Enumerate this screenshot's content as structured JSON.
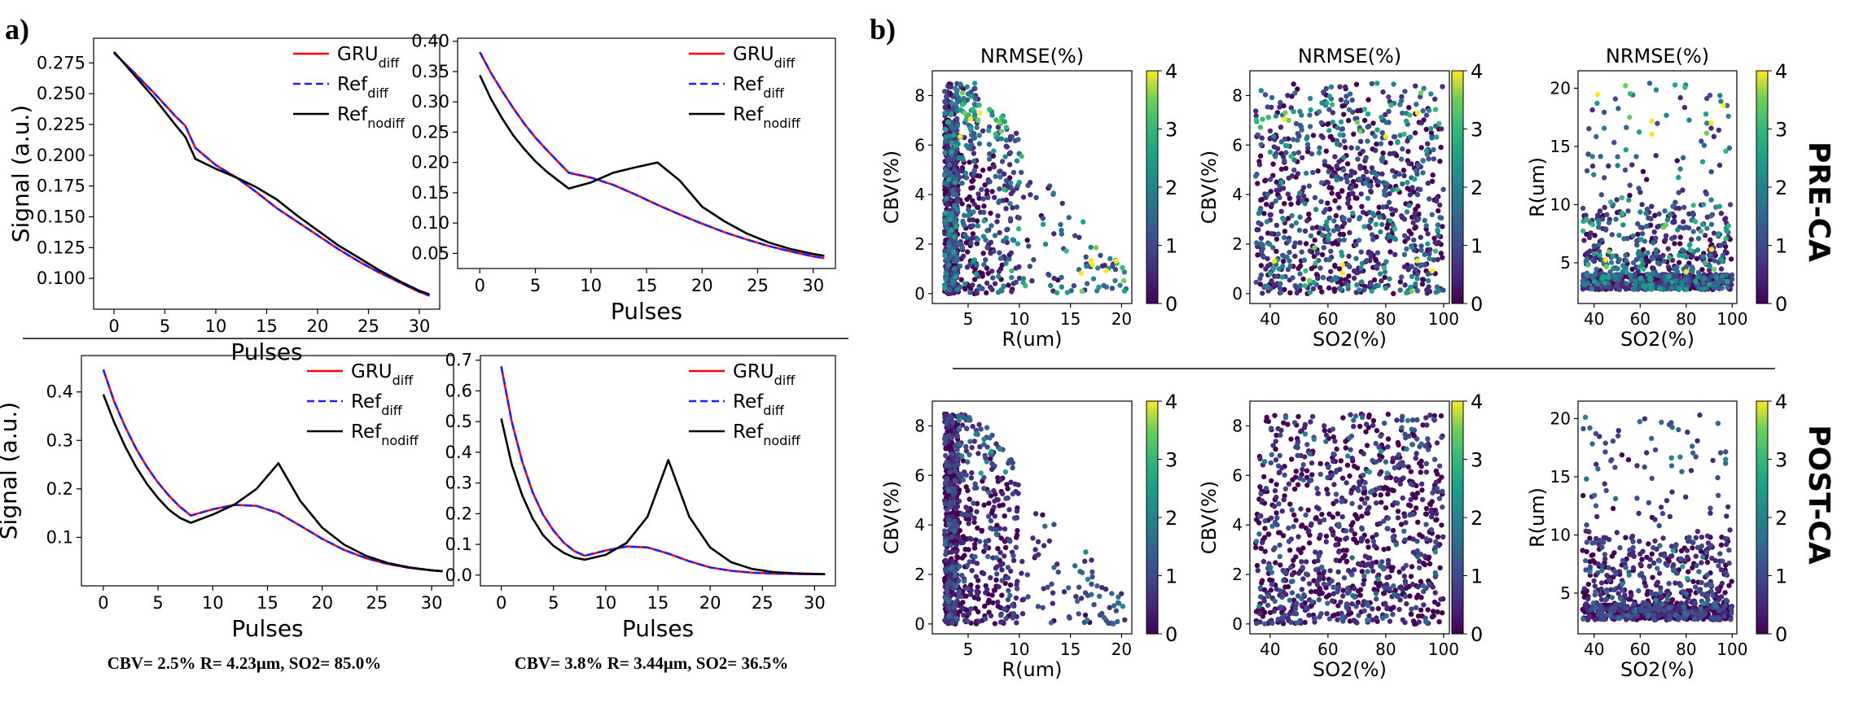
{
  "panel_labels": {
    "a": "a)",
    "b": "b)"
  },
  "row_labels": {
    "pre": "PRE-CA",
    "post": "POST-CA"
  },
  "captions": [
    "CBV= 2.5% R= 4.23μm, SO2= 85.0%",
    "CBV= 3.8% R= 3.44μm, SO2= 36.5%"
  ],
  "legend": {
    "gru": {
      "base": "GRU",
      "sub": "diff",
      "color": "#ff0000"
    },
    "ref": {
      "base": "Ref",
      "sub": "diff",
      "color": "#1f1fff"
    },
    "refnod": {
      "base": "Ref",
      "sub": "nodiff",
      "color": "#000000"
    }
  },
  "colorbar": {
    "ticks": [
      "0",
      "1",
      "2",
      "3",
      "4"
    ],
    "min": 0,
    "max": 4
  },
  "chart_data": [
    {
      "type": "line",
      "title": "",
      "xlabel": "Pulses",
      "ylabel": "Signal (a.u.)",
      "xlim": [
        -2,
        32
      ],
      "ylim": [
        0.075,
        0.295
      ],
      "xticks": [
        0,
        5,
        10,
        15,
        20,
        25,
        30
      ],
      "yticks": [
        0.1,
        0.125,
        0.15,
        0.175,
        0.2,
        0.225,
        0.25,
        0.275
      ],
      "ytick_labels": [
        "0.100",
        "0.125",
        "0.150",
        "0.175",
        "0.200",
        "0.225",
        "0.250",
        "0.275"
      ],
      "x": [
        0,
        2,
        4,
        6,
        7,
        8,
        10,
        12,
        14,
        16,
        18,
        20,
        22,
        24,
        26,
        28,
        30,
        31
      ],
      "series": [
        {
          "name": "GRU_diff",
          "values": [
            0.283,
            0.267,
            0.25,
            0.232,
            0.224,
            0.206,
            0.192,
            0.182,
            0.17,
            0.157,
            0.146,
            0.135,
            0.124,
            0.114,
            0.105,
            0.097,
            0.089,
            0.086
          ]
        },
        {
          "name": "Ref_diff",
          "values": [
            0.283,
            0.267,
            0.25,
            0.232,
            0.224,
            0.206,
            0.192,
            0.182,
            0.17,
            0.157,
            0.146,
            0.135,
            0.124,
            0.114,
            0.105,
            0.097,
            0.089,
            0.086
          ]
        },
        {
          "name": "Ref_nodiff",
          "values": [
            0.284,
            0.265,
            0.246,
            0.225,
            0.215,
            0.197,
            0.189,
            0.182,
            0.174,
            0.164,
            0.151,
            0.139,
            0.127,
            0.117,
            0.107,
            0.098,
            0.09,
            0.087
          ]
        }
      ]
    },
    {
      "type": "line",
      "title": "",
      "xlabel": "Pulses",
      "ylabel": "",
      "xlim": [
        -2,
        32
      ],
      "ylim": [
        0.025,
        0.405
      ],
      "xticks": [
        0,
        5,
        10,
        15,
        20,
        25,
        30
      ],
      "yticks": [
        0.05,
        0.1,
        0.15,
        0.2,
        0.25,
        0.3,
        0.35,
        0.4
      ],
      "ytick_labels": [
        "0.05",
        "0.10",
        "0.15",
        "0.20",
        "0.25",
        "0.30",
        "0.35",
        "0.40"
      ],
      "x": [
        0,
        1,
        2,
        3,
        4,
        5,
        6,
        7,
        8,
        10,
        12,
        14,
        16,
        18,
        20,
        22,
        24,
        26,
        28,
        30,
        31
      ],
      "series": [
        {
          "name": "GRU_diff",
          "values": [
            0.382,
            0.348,
            0.318,
            0.29,
            0.264,
            0.241,
            0.221,
            0.202,
            0.183,
            0.175,
            0.163,
            0.147,
            0.13,
            0.114,
            0.099,
            0.085,
            0.073,
            0.062,
            0.053,
            0.045,
            0.042
          ]
        },
        {
          "name": "Ref_diff",
          "values": [
            0.382,
            0.348,
            0.318,
            0.29,
            0.264,
            0.241,
            0.221,
            0.202,
            0.183,
            0.175,
            0.163,
            0.147,
            0.13,
            0.114,
            0.099,
            0.085,
            0.073,
            0.062,
            0.053,
            0.045,
            0.042
          ]
        },
        {
          "name": "Ref_nodiff",
          "values": [
            0.344,
            0.305,
            0.273,
            0.245,
            0.222,
            0.202,
            0.185,
            0.171,
            0.157,
            0.167,
            0.183,
            0.192,
            0.2,
            0.17,
            0.127,
            0.103,
            0.083,
            0.068,
            0.057,
            0.049,
            0.046
          ]
        }
      ]
    },
    {
      "type": "line",
      "title": "",
      "xlabel": "Pulses",
      "ylabel": "Signal (a.u.)",
      "xlim": [
        -2,
        32
      ],
      "ylim": [
        0.0,
        0.475
      ],
      "xticks": [
        0,
        5,
        10,
        15,
        20,
        25,
        30
      ],
      "yticks": [
        0.1,
        0.2,
        0.3,
        0.4
      ],
      "ytick_labels": [
        "0.1",
        "0.2",
        "0.3",
        "0.4"
      ],
      "x": [
        0,
        1,
        2,
        3,
        4,
        5,
        6,
        7,
        8,
        10,
        12,
        14,
        16,
        18,
        20,
        22,
        24,
        26,
        28,
        30,
        31
      ],
      "series": [
        {
          "name": "GRU_diff",
          "values": [
            0.446,
            0.38,
            0.328,
            0.283,
            0.245,
            0.213,
            0.186,
            0.163,
            0.145,
            0.158,
            0.167,
            0.165,
            0.15,
            0.124,
            0.097,
            0.074,
            0.057,
            0.045,
            0.037,
            0.032,
            0.03
          ]
        },
        {
          "name": "Ref_diff",
          "values": [
            0.446,
            0.38,
            0.328,
            0.283,
            0.245,
            0.213,
            0.186,
            0.163,
            0.145,
            0.158,
            0.167,
            0.165,
            0.15,
            0.124,
            0.097,
            0.074,
            0.057,
            0.045,
            0.037,
            0.032,
            0.03
          ]
        },
        {
          "name": "Ref_nodiff",
          "values": [
            0.395,
            0.337,
            0.287,
            0.245,
            0.21,
            0.181,
            0.157,
            0.14,
            0.13,
            0.147,
            0.168,
            0.2,
            0.253,
            0.175,
            0.12,
            0.085,
            0.062,
            0.047,
            0.038,
            0.032,
            0.03
          ]
        }
      ]
    },
    {
      "type": "line",
      "title": "",
      "xlabel": "Pulses",
      "ylabel": "",
      "xlim": [
        -2,
        32
      ],
      "ylim": [
        -0.035,
        0.715
      ],
      "xticks": [
        0,
        5,
        10,
        15,
        20,
        25,
        30
      ],
      "yticks": [
        0.0,
        0.1,
        0.2,
        0.3,
        0.4,
        0.5,
        0.6,
        0.7
      ],
      "ytick_labels": [
        "0.0",
        "0.1",
        "0.2",
        "0.3",
        "0.4",
        "0.5",
        "0.6",
        "0.7"
      ],
      "x": [
        0,
        1,
        2,
        3,
        4,
        5,
        6,
        7,
        8,
        10,
        12,
        14,
        16,
        18,
        20,
        22,
        24,
        26,
        28,
        30,
        31
      ],
      "series": [
        {
          "name": "GRU_diff",
          "values": [
            0.68,
            0.5,
            0.37,
            0.27,
            0.197,
            0.145,
            0.105,
            0.078,
            0.063,
            0.08,
            0.093,
            0.09,
            0.07,
            0.045,
            0.025,
            0.014,
            0.008,
            0.005,
            0.004,
            0.003,
            0.003
          ]
        },
        {
          "name": "Ref_diff",
          "values": [
            0.68,
            0.5,
            0.37,
            0.27,
            0.197,
            0.145,
            0.105,
            0.078,
            0.063,
            0.08,
            0.093,
            0.09,
            0.07,
            0.045,
            0.025,
            0.014,
            0.008,
            0.005,
            0.004,
            0.003,
            0.003
          ]
        },
        {
          "name": "Ref_nodiff",
          "values": [
            0.51,
            0.36,
            0.26,
            0.185,
            0.13,
            0.095,
            0.072,
            0.057,
            0.05,
            0.066,
            0.105,
            0.19,
            0.375,
            0.19,
            0.09,
            0.042,
            0.02,
            0.01,
            0.006,
            0.004,
            0.003
          ]
        }
      ]
    },
    {
      "type": "scatter",
      "title": "NRMSE(%)",
      "xlabel": "R(um)",
      "ylabel": "CBV(%)",
      "row": "PRE-CA",
      "xlim": [
        1.5,
        21
      ],
      "ylim": [
        -0.4,
        9.0
      ],
      "xticks": [
        5,
        10,
        15,
        20
      ],
      "yticks": [
        0,
        2,
        4,
        6,
        8
      ],
      "colorbar_range": [
        0,
        4
      ],
      "points_note": "~1000 points; R mostly 2.5-4 um, CBV 0-8.5%; errors up to >4% at high R"
    },
    {
      "type": "scatter",
      "title": "NRMSE(%)",
      "xlabel": "SO2(%)",
      "ylabel": "CBV(%)",
      "row": "PRE-CA",
      "xlim": [
        33,
        102
      ],
      "ylim": [
        -0.4,
        9.0
      ],
      "xticks": [
        40,
        60,
        80,
        100
      ],
      "yticks": [
        0,
        2,
        4,
        6,
        8
      ],
      "colorbar_range": [
        0,
        4
      ],
      "points_note": "~1000 points; SO2 35-100%, CBV 0-8.5%"
    },
    {
      "type": "scatter",
      "title": "NRMSE(%)",
      "xlabel": "SO2(%)",
      "ylabel": "R(um)",
      "row": "PRE-CA",
      "xlim": [
        33,
        102
      ],
      "ylim": [
        1.5,
        21.5
      ],
      "xticks": [
        40,
        60,
        80,
        100
      ],
      "yticks": [
        5,
        10,
        15,
        20
      ],
      "colorbar_range": [
        0,
        4
      ],
      "points_note": "~1000 points; R clustered 2.5-4 um"
    },
    {
      "type": "scatter",
      "title": "",
      "xlabel": "R(um)",
      "ylabel": "CBV(%)",
      "row": "POST-CA",
      "xlim": [
        1.5,
        21
      ],
      "ylim": [
        -0.4,
        9.0
      ],
      "xticks": [
        5,
        10,
        15,
        20
      ],
      "yticks": [
        0,
        2,
        4,
        6,
        8
      ],
      "colorbar_range": [
        0,
        4
      ],
      "points_note": "~1000 points; mostly low errors"
    },
    {
      "type": "scatter",
      "title": "",
      "xlabel": "SO2(%)",
      "ylabel": "CBV(%)",
      "row": "POST-CA",
      "xlim": [
        33,
        102
      ],
      "ylim": [
        -0.4,
        9.0
      ],
      "xticks": [
        40,
        60,
        80,
        100
      ],
      "yticks": [
        0,
        2,
        4,
        6,
        8
      ],
      "colorbar_range": [
        0,
        4
      ],
      "points_note": "~1000 points; mostly low errors"
    },
    {
      "type": "scatter",
      "title": "",
      "xlabel": "SO2(%)",
      "ylabel": "R(um)",
      "row": "POST-CA",
      "xlim": [
        33,
        102
      ],
      "ylim": [
        1.5,
        21.5
      ],
      "xticks": [
        40,
        60,
        80,
        100
      ],
      "yticks": [
        5,
        10,
        15,
        20
      ],
      "colorbar_range": [
        0,
        4
      ],
      "points_note": "~1000 points; mostly low errors"
    }
  ]
}
